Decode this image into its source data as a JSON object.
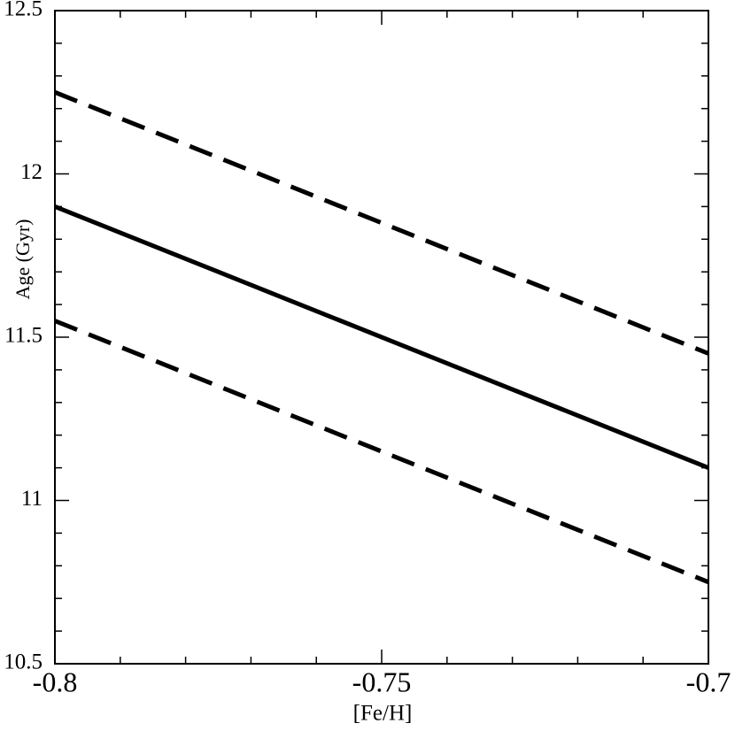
{
  "chart_data": {
    "type": "line",
    "xlabel": "[Fe/H]",
    "ylabel": "Age (Gyr)",
    "x": [
      -0.8,
      -0.7
    ],
    "series": [
      {
        "color": "#000000",
        "style": "dashed",
        "values": [
          12.25,
          11.45
        ]
      },
      {
        "color": "#000000",
        "style": "solid",
        "values": [
          11.9,
          11.1
        ]
      },
      {
        "color": "#000000",
        "style": "dashed",
        "values": [
          11.55,
          10.75
        ]
      }
    ],
    "xlim": [
      -0.8,
      -0.7
    ],
    "ylim": [
      10.5,
      12.5
    ],
    "xticks": [
      -0.8,
      -0.75,
      -0.7
    ],
    "yticks": [
      10.5,
      11,
      11.5,
      12,
      12.5
    ],
    "xminorticks": [
      -0.79,
      -0.78,
      -0.77,
      -0.76,
      -0.74,
      -0.73,
      -0.72,
      -0.71
    ],
    "yminorticks": [
      10.6,
      10.7,
      10.8,
      10.9,
      11.1,
      11.2,
      11.3,
      11.4,
      11.6,
      11.7,
      11.8,
      11.9,
      12.1,
      12.2,
      12.3,
      12.4
    ],
    "grid": false
  }
}
